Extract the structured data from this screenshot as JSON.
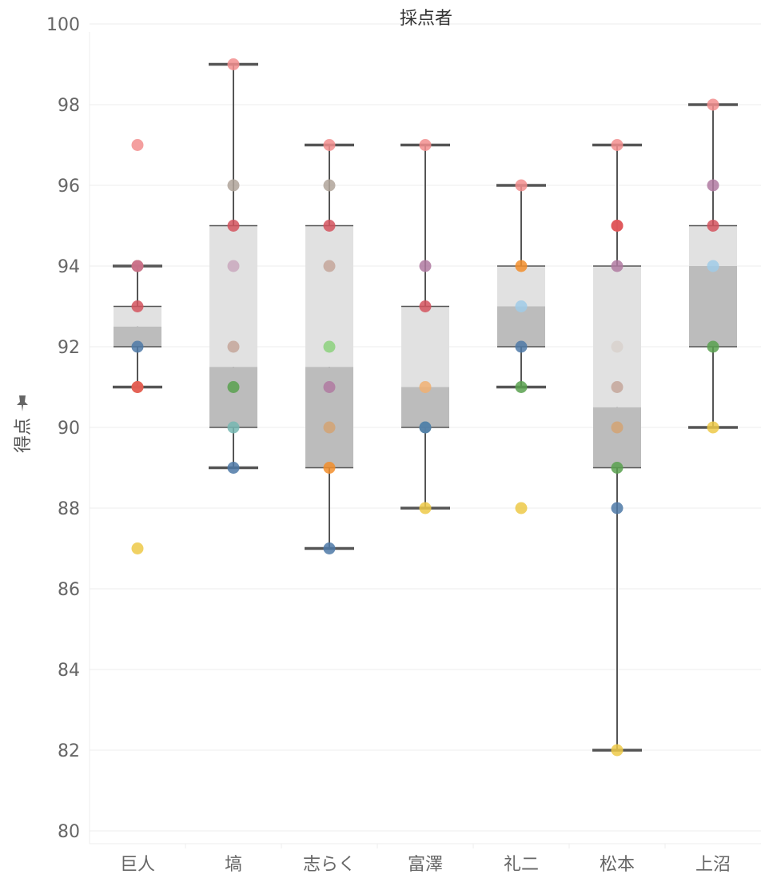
{
  "chart_data": {
    "type": "box",
    "title": "採点者",
    "xlabel": "",
    "ylabel": "得点",
    "ylim": [
      80,
      100
    ],
    "yticks": [
      80,
      82,
      84,
      86,
      88,
      90,
      92,
      94,
      96,
      98,
      100
    ],
    "grid": true,
    "categories": [
      "巨人",
      "塙",
      "志らく",
      "富澤",
      "礼二",
      "松本",
      "上沼"
    ],
    "boxes": [
      {
        "category": "巨人",
        "lower_whisker": 91,
        "q1": 92,
        "median": 92.5,
        "q3": 93,
        "upper_whisker": 94
      },
      {
        "category": "塙",
        "lower_whisker": 89,
        "q1": 90,
        "median": 91.5,
        "q3": 95,
        "upper_whisker": 99
      },
      {
        "category": "志らく",
        "lower_whisker": 87,
        "q1": 89,
        "median": 91.5,
        "q3": 95,
        "upper_whisker": 97
      },
      {
        "category": "富澤",
        "lower_whisker": 88,
        "q1": 90,
        "median": 91,
        "q3": 93,
        "upper_whisker": 97
      },
      {
        "category": "礼二",
        "lower_whisker": 91,
        "q1": 92,
        "median": 93,
        "q3": 94,
        "upper_whisker": 96
      },
      {
        "category": "松本",
        "lower_whisker": 82,
        "q1": 89,
        "median": 90.5,
        "q3": 94,
        "upper_whisker": 97
      },
      {
        "category": "上沼",
        "lower_whisker": 90,
        "q1": 92,
        "median": 94,
        "q3": 95,
        "upper_whisker": 98
      }
    ],
    "points": [
      {
        "category": "巨人",
        "values": [
          97,
          94,
          94,
          93,
          92,
          91,
          91,
          87
        ],
        "colors": [
          "#f28e8e",
          "#8c6d31",
          "#d37295",
          "#d4545e",
          "#4e79a7",
          "#f28e2b",
          "#e15759",
          "#edc948"
        ]
      },
      {
        "category": "塙",
        "values": [
          99,
          96,
          95,
          94,
          92,
          91,
          90,
          89
        ],
        "colors": [
          "#f28e8e",
          "#b0a59a",
          "#d4545e",
          "#c9a8bd",
          "#c4a69a",
          "#59a14f",
          "#76b7b2",
          "#4e79a7"
        ]
      },
      {
        "category": "志らく",
        "values": [
          97,
          96,
          95,
          94,
          92,
          91,
          90,
          89,
          87
        ],
        "colors": [
          "#f28e8e",
          "#b0a59a",
          "#d4545e",
          "#c4a69a",
          "#8cd17d",
          "#b07aa1",
          "#d4a373",
          "#f28e2b",
          "#4e79a7"
        ]
      },
      {
        "category": "富澤",
        "values": [
          97,
          94,
          93,
          91,
          90,
          90,
          88
        ],
        "colors": [
          "#f28e8e",
          "#b07aa1",
          "#d4545e",
          "#f1b072",
          "#76b7b2",
          "#4e79a7",
          "#edc948"
        ]
      },
      {
        "category": "礼二",
        "values": [
          96,
          94,
          93,
          92,
          91,
          88
        ],
        "colors": [
          "#f28e8e",
          "#f28e2b",
          "#a0cbe8",
          "#4e79a7",
          "#59a14f",
          "#edc948"
        ]
      },
      {
        "category": "松本",
        "values": [
          97,
          95,
          95,
          94,
          92,
          91,
          90,
          89,
          88,
          82
        ],
        "colors": [
          "#f28e8e",
          "#d4545e",
          "#e15759",
          "#b07aa1",
          "#d8d1cc",
          "#c4a69a",
          "#d4a373",
          "#59a14f",
          "#4e79a7",
          "#edc948"
        ]
      },
      {
        "category": "上沼",
        "values": [
          98,
          96,
          95,
          94,
          92,
          90
        ],
        "colors": [
          "#f28e8e",
          "#b07aa1",
          "#d4545e",
          "#a0cbe8",
          "#59a14f",
          "#edc948"
        ]
      }
    ],
    "colors": {
      "box_upper": "#e1e1e1",
      "box_lower": "#bcbcbc",
      "whisker": "#555555",
      "grid": "#ececec",
      "axis_text": "#666666",
      "title_text": "#333333"
    },
    "pin_icon": "pin-icon"
  }
}
